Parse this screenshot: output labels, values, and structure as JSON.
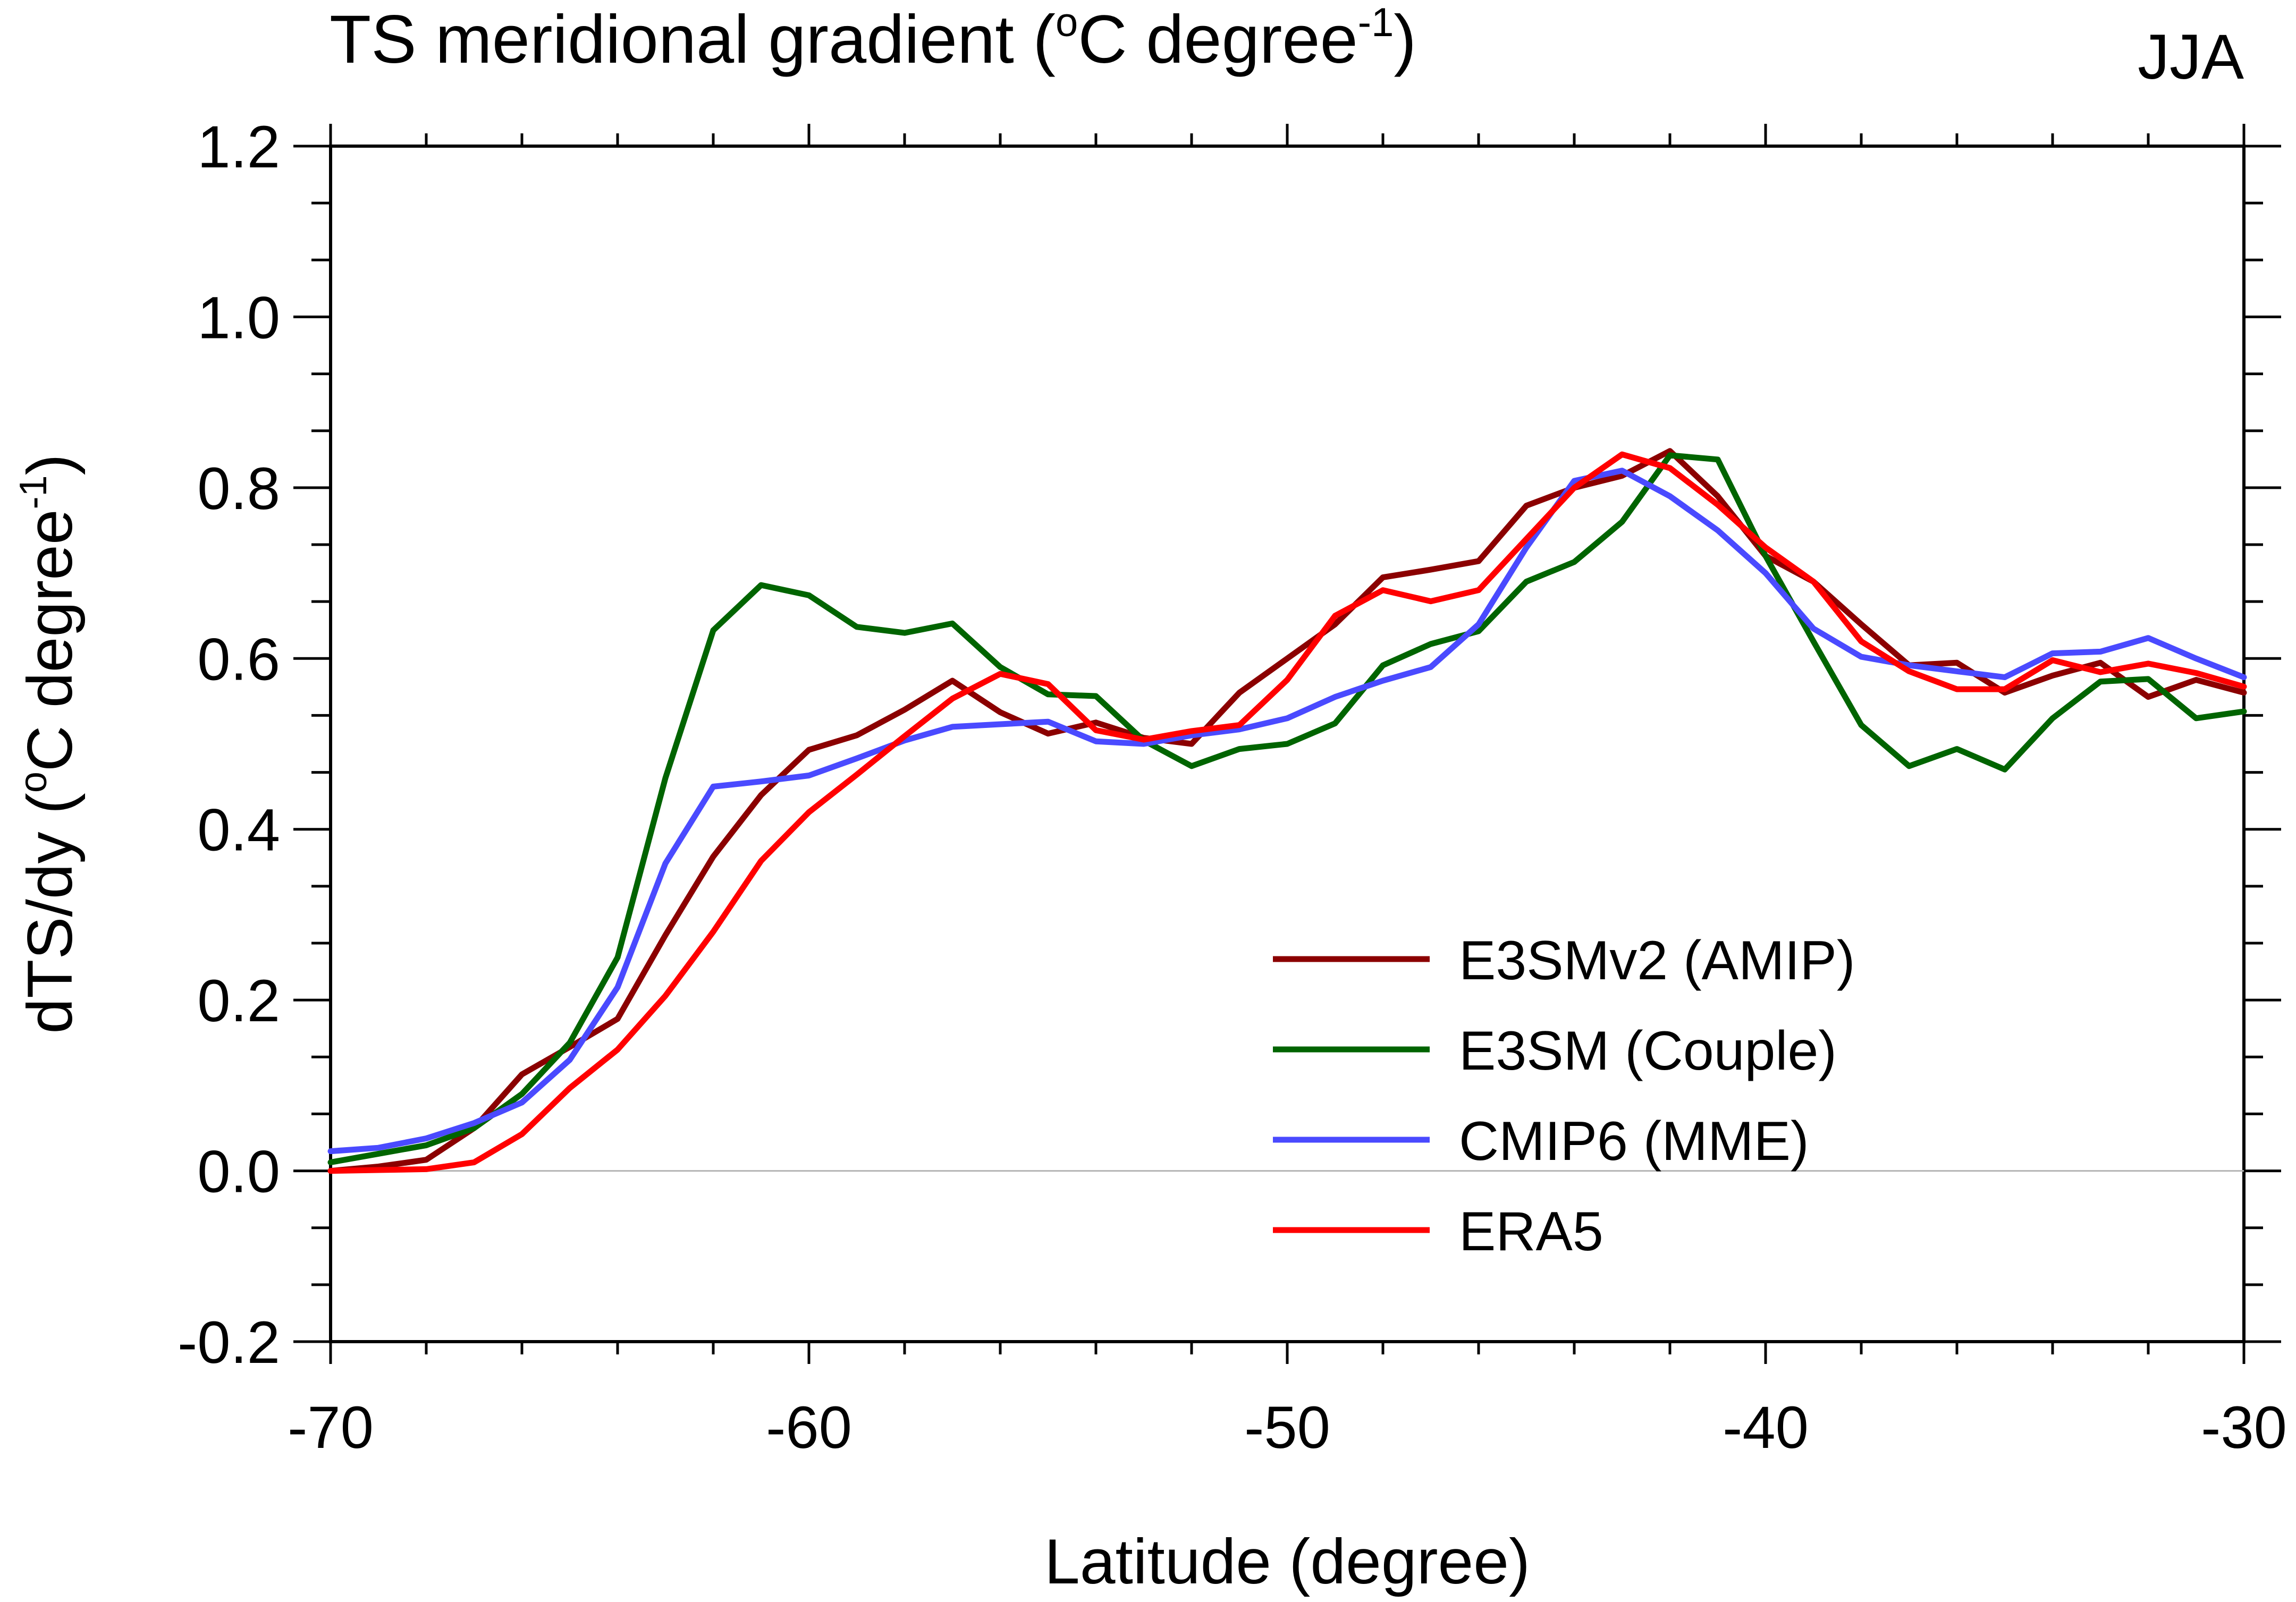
{
  "chart_data": {
    "type": "line",
    "title": "TS meridional gradient (",
    "title_unit_sup": "o",
    "title_unit_mid": "C degree",
    "title_unit_sup2": "-1",
    "title_unit_end": ")",
    "season_label": "JJA",
    "xlabel": "Latitude (degree)",
    "ylabel_main": "dTS/dy (",
    "ylabel_sup": "o",
    "ylabel_mid": "C degree",
    "ylabel_sup2": "-1",
    "ylabel_end": ")",
    "xlim": [
      -70,
      -30
    ],
    "ylim": [
      -0.2,
      1.2
    ],
    "x_major_ticks": [
      -70,
      -60,
      -50,
      -40,
      -30
    ],
    "x_tick_labels": [
      "-70",
      "-60",
      "-50",
      "-40",
      "-30"
    ],
    "x_minor_step": 2,
    "y_major_ticks": [
      -0.2,
      0.0,
      0.2,
      0.4,
      0.6,
      0.8,
      1.0,
      1.2
    ],
    "y_tick_labels": [
      "-0.2",
      "0.0",
      "0.2",
      "0.4",
      "0.6",
      "0.8",
      "1.0",
      "1.2"
    ],
    "y_minor_step": 0.0667,
    "reference_line_y": 0.0,
    "x": [
      -70,
      -69,
      -68,
      -67,
      -66,
      -65,
      -64,
      -63,
      -62,
      -61,
      -60,
      -59,
      -58,
      -57,
      -56,
      -55,
      -54,
      -53,
      -52,
      -51,
      -50,
      -49,
      -48,
      -47,
      -46,
      -45,
      -44,
      -43,
      -42,
      -41,
      -40,
      -39,
      -38,
      -37,
      -36,
      -35,
      -34,
      -33,
      -32,
      -31,
      -30
    ],
    "series": [
      {
        "name": "E3SMv2 (AMIP)",
        "color": "#8b0000",
        "values": [
          0.0,
          0.005,
          0.013,
          0.05,
          0.113,
          0.145,
          0.178,
          0.276,
          0.368,
          0.44,
          0.493,
          0.51,
          0.54,
          0.574,
          0.537,
          0.512,
          0.525,
          0.507,
          0.5,
          0.56,
          0.6,
          0.64,
          0.695,
          0.704,
          0.714,
          0.779,
          0.8,
          0.814,
          0.843,
          0.79,
          0.72,
          0.69,
          0.64,
          0.592,
          0.595,
          0.56,
          0.58,
          0.595,
          0.555,
          0.575,
          0.56
        ]
      },
      {
        "name": "E3SM (Couple)",
        "color": "#006400",
        "values": [
          0.01,
          0.02,
          0.03,
          0.05,
          0.09,
          0.15,
          0.25,
          0.46,
          0.633,
          0.686,
          0.674,
          0.637,
          0.63,
          0.641,
          0.59,
          0.558,
          0.556,
          0.504,
          0.474,
          0.494,
          0.5,
          0.524,
          0.592,
          0.617,
          0.632,
          0.69,
          0.713,
          0.76,
          0.838,
          0.833,
          0.72,
          0.62,
          0.522,
          0.474,
          0.494,
          0.47,
          0.53,
          0.573,
          0.576,
          0.53,
          0.538
        ]
      },
      {
        "name": "CMIP6 (MME)",
        "color": "#4a4aff",
        "values": [
          0.023,
          0.027,
          0.038,
          0.056,
          0.08,
          0.13,
          0.215,
          0.36,
          0.45,
          0.456,
          0.463,
          0.483,
          0.504,
          0.52,
          0.523,
          0.526,
          0.503,
          0.5,
          0.51,
          0.517,
          0.53,
          0.555,
          0.574,
          0.59,
          0.64,
          0.73,
          0.808,
          0.82,
          0.79,
          0.75,
          0.7,
          0.635,
          0.602,
          0.592,
          0.585,
          0.578,
          0.606,
          0.608,
          0.624,
          0.6,
          0.578
        ]
      },
      {
        "name": "ERA5",
        "color": "#ff0000",
        "values": [
          0.0,
          0.001,
          0.002,
          0.01,
          0.043,
          0.097,
          0.142,
          0.205,
          0.28,
          0.363,
          0.42,
          0.464,
          0.509,
          0.553,
          0.582,
          0.57,
          0.516,
          0.505,
          0.515,
          0.522,
          0.575,
          0.65,
          0.68,
          0.667,
          0.68,
          0.74,
          0.8,
          0.839,
          0.823,
          0.78,
          0.73,
          0.69,
          0.62,
          0.585,
          0.564,
          0.564,
          0.598,
          0.584,
          0.594,
          0.583,
          0.567
        ]
      }
    ],
    "legend_position": "lower-right-inside"
  }
}
